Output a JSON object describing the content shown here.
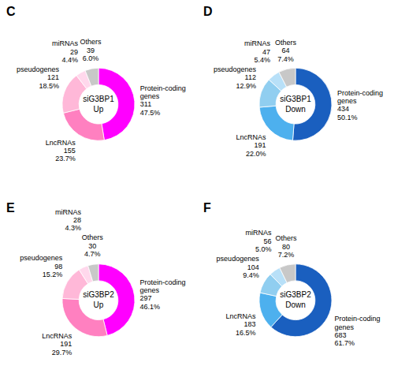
{
  "chart_data": [
    {
      "type": "pie",
      "title": "C",
      "annotations": [
        "siG3BP1\nUp"
      ],
      "categories": [
        "Protein-coding\ngenes",
        "LncRNAs",
        "pseudogenes",
        "miRNAs",
        "Others"
      ],
      "values": [
        47.5,
        23.7,
        18.5,
        4.4,
        6.0
      ],
      "value_labels": [
        "47.5%",
        "23.7%",
        "18.5%",
        "4.4%",
        "6.0%"
      ],
      "counts": [
        311,
        155,
        121,
        29,
        39
      ],
      "colors": [
        "#FF00FF",
        "#FF80C0",
        "#FFB8D8",
        "#FFD8EC",
        "#C8C8C8"
      ],
      "data_labels": true
    },
    {
      "type": "pie",
      "title": "D",
      "annotations": [
        "siG3BP1\nDown"
      ],
      "categories": [
        "Protein-coding\ngenes",
        "LncRNAs",
        "pseudogenes",
        "miRNAs",
        "Others"
      ],
      "values": [
        50.1,
        22.0,
        12.9,
        5.4,
        7.4
      ],
      "value_labels": [
        "50.1%",
        "22.0%",
        "12.9%",
        "5.4%",
        "7.4%"
      ],
      "counts": [
        434,
        191,
        112,
        47,
        64
      ],
      "colors": [
        "#1A5FBF",
        "#4DB0EE",
        "#90CEF0",
        "#B8E0F8",
        "#C8C8C8"
      ],
      "data_labels": true
    },
    {
      "type": "pie",
      "title": "E",
      "annotations": [
        "siG3BP2\nUp"
      ],
      "categories": [
        "Protein-coding\ngenes",
        "LncRNAs",
        "pseudogenes",
        "miRNAs",
        "Others"
      ],
      "values": [
        46.1,
        29.7,
        15.2,
        4.3,
        4.7
      ],
      "value_labels": [
        "46.1%",
        "29.7%",
        "15.2%",
        "4.3%",
        "4.7%"
      ],
      "counts": [
        297,
        191,
        98,
        28,
        30
      ],
      "colors": [
        "#FF00FF",
        "#FF80C0",
        "#FFB8D8",
        "#FFD8EC",
        "#C8C8C8"
      ],
      "data_labels": true
    },
    {
      "type": "pie",
      "title": "F",
      "annotations": [
        "siG3BP2\nDown"
      ],
      "categories": [
        "Protein-coding\ngenes",
        "LncRNAs",
        "pseudogenes",
        "miRNAs",
        "Others"
      ],
      "values": [
        61.7,
        16.5,
        9.4,
        5.0,
        7.2
      ],
      "value_labels": [
        "61.7%",
        "16.5%",
        "9.4%",
        "5.0%",
        "7.2%"
      ],
      "counts": [
        683,
        183,
        104,
        56,
        80
      ],
      "colors": [
        "#1A5FBF",
        "#4DB0EE",
        "#90CEF0",
        "#B8E0F8",
        "#C8C8C8"
      ],
      "data_labels": true
    }
  ]
}
